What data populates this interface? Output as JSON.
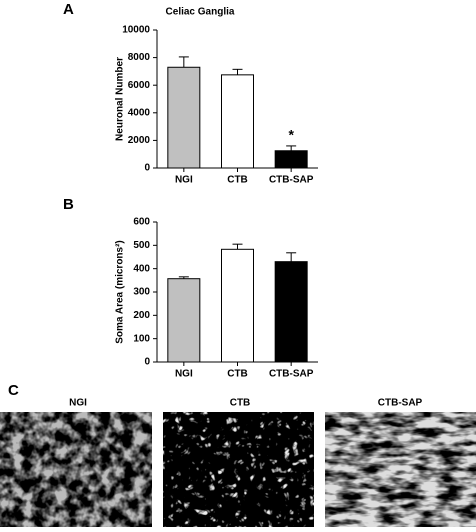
{
  "chart_data": [
    {
      "type": "bar",
      "panel": "A",
      "title": "Celiac Ganglia",
      "y_label": "Neuronal Number",
      "categories": [
        "NGI",
        "CTB",
        "CTB-SAP"
      ],
      "values": [
        7300,
        6750,
        1250
      ],
      "errors": [
        750,
        400,
        350
      ],
      "colors": [
        "#c0c0c0",
        "#ffffff",
        "#000000"
      ],
      "ylim": [
        0,
        10000
      ],
      "yticks": [
        0,
        2000,
        4000,
        6000,
        8000,
        10000
      ],
      "annotations": [
        {
          "text": "*",
          "category": "CTB-SAP"
        }
      ]
    },
    {
      "type": "bar",
      "panel": "B",
      "y_label": "Soma Area (microns²)",
      "categories": [
        "NGI",
        "CTB",
        "CTB-SAP"
      ],
      "values": [
        357,
        483,
        430
      ],
      "errors": [
        8,
        22,
        38
      ],
      "colors": [
        "#c0c0c0",
        "#ffffff",
        "#000000"
      ],
      "ylim": [
        0,
        600
      ],
      "yticks": [
        0,
        100,
        200,
        300,
        400,
        500,
        600
      ]
    }
  ],
  "panel_c": {
    "label": "C",
    "images": [
      {
        "label": "NGI"
      },
      {
        "label": "CTB"
      },
      {
        "label": "CTB-SAP"
      }
    ]
  }
}
